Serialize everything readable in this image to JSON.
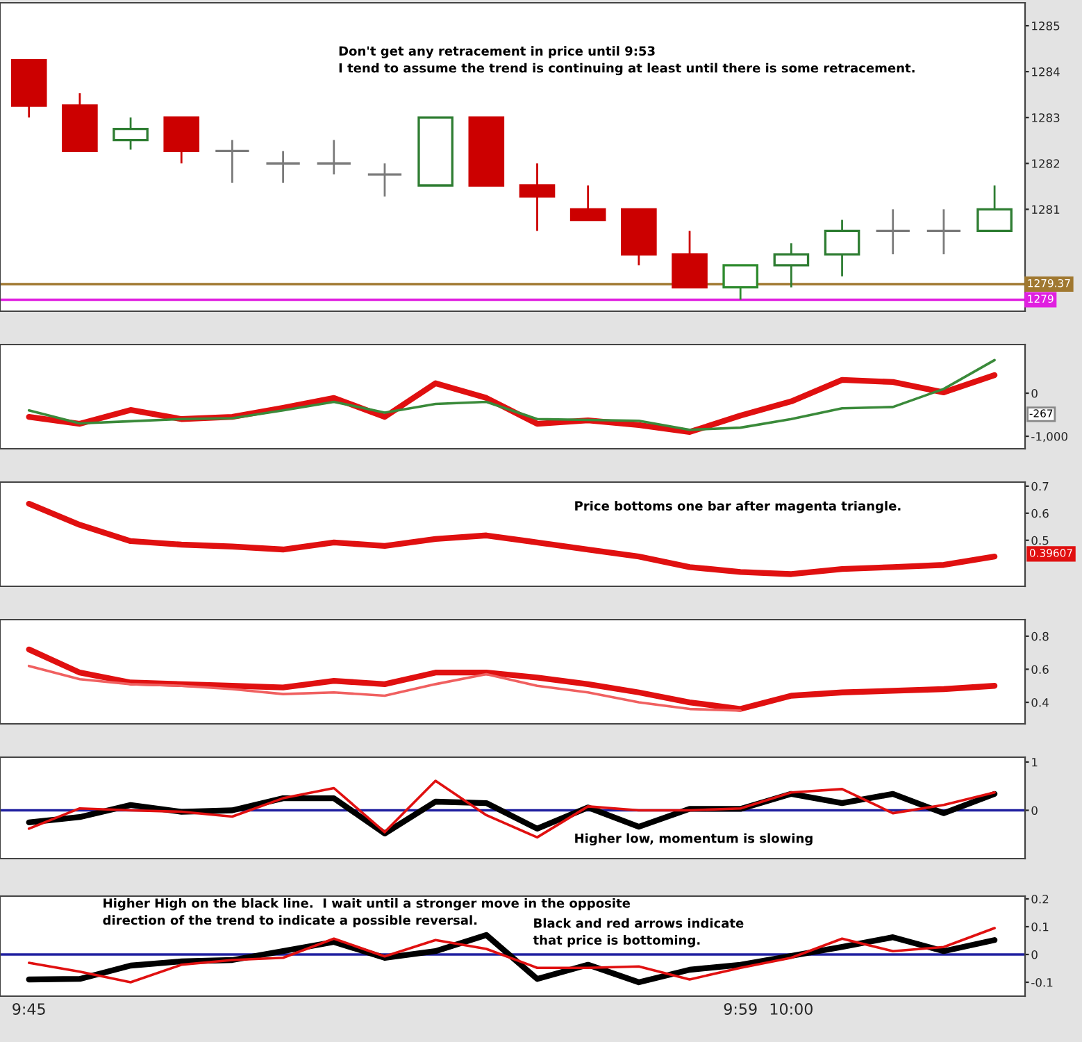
{
  "chart_data": [
    {
      "type": "candlestick",
      "categories": [
        null,
        null,
        null,
        null,
        null,
        null,
        null,
        null,
        null,
        null,
        null,
        null,
        null,
        null,
        null,
        null,
        null,
        null,
        null,
        null
      ],
      "ohlc": [
        [
          1284.25,
          1284.25,
          1283.0,
          1283.26
        ],
        [
          1283.26,
          1283.53,
          1282.27,
          1282.27
        ],
        [
          1282.51,
          1283.0,
          1282.3,
          1282.75
        ],
        [
          1283.0,
          1283.0,
          1282.0,
          1282.27
        ],
        [
          1282.27,
          1282.51,
          1281.58,
          1282.27
        ],
        [
          1282.0,
          1282.27,
          1281.58,
          1282.0
        ],
        [
          1282.0,
          1282.51,
          1281.76,
          1282.0
        ],
        [
          1281.76,
          1282.0,
          1281.28,
          1281.76
        ],
        [
          1281.52,
          1283.0,
          1281.52,
          1283.0
        ],
        [
          1283.0,
          1283.0,
          1281.52,
          1281.52
        ],
        [
          1281.52,
          1282.0,
          1280.53,
          1281.28
        ],
        [
          1281.0,
          1281.52,
          1280.77,
          1280.77
        ],
        [
          1281.0,
          1281.0,
          1279.78,
          1280.02
        ],
        [
          1280.02,
          1280.53,
          1279.3,
          1279.3
        ],
        [
          1279.3,
          1279.78,
          1279.03,
          1279.78
        ],
        [
          1279.78,
          1280.26,
          1279.3,
          1280.02
        ],
        [
          1280.02,
          1280.77,
          1279.54,
          1280.53
        ],
        [
          1280.53,
          1281.0,
          1280.02,
          1280.53
        ],
        [
          1280.53,
          1281.0,
          1280.02,
          1280.53
        ],
        [
          1280.53,
          1281.52,
          1280.53,
          1281.0
        ]
      ],
      "colors": [
        "#cc0000",
        "#cc0000",
        "#2e7d32",
        "#cc0000",
        "#7a7a7a",
        "#7a7a7a",
        "#7a7a7a",
        "#7a7a7a",
        "#2e7d32",
        "#cc0000",
        "#cc0000",
        "#cc0000",
        "#cc0000",
        "#cc0000",
        "#2e8b2e",
        "#2e7d32",
        "#2e7d32",
        "#7a7a7a",
        "#7a7a7a",
        "#2e7d32"
      ],
      "ylim": [
        1278.78,
        1285.5
      ],
      "yticks": [
        1281,
        1282,
        1283,
        1284,
        1285
      ],
      "tick_labels": "y",
      "ref_lines": [
        {
          "axis": "y",
          "value": 1279.37,
          "label": "1279.37",
          "color": "#a07830"
        },
        {
          "axis": "y",
          "value": 1279.03,
          "label": "1279",
          "color": "#e020e0"
        }
      ],
      "annotations": [
        "Don't get any retracement in price until 9:53\nI tend to assume the trend is continuing at least until there is some retracement."
      ]
    },
    {
      "type": "line",
      "categories": [
        null,
        null,
        null,
        null,
        null,
        null,
        null,
        null,
        null,
        null,
        null,
        null,
        null,
        null,
        null,
        null,
        null,
        null,
        null,
        null
      ],
      "series": [
        {
          "color": "#e01010",
          "values": [
            -550,
            -710,
            -390,
            -600,
            -550,
            -340,
            -110,
            -550,
            230,
            -110,
            -710,
            -630,
            -740,
            -900,
            -520,
            -190,
            310,
            260,
            20,
            420
          ]
        },
        {
          "color": "#3a8a3a",
          "values": [
            -400,
            -700,
            -650,
            -600,
            -580,
            -400,
            -200,
            -450,
            -250,
            -200,
            -600,
            -620,
            -640,
            -850,
            -800,
            -600,
            -350,
            -320,
            100,
            770
          ]
        }
      ],
      "ylim": [
        -1290,
        1130
      ],
      "yticks": [
        0,
        {
          "value": -1000,
          "label": "-1,000"
        }
      ],
      "tick_labels": "y",
      "annotations": [
        "-267"
      ]
    },
    {
      "type": "line",
      "categories": [
        null,
        null,
        null,
        null,
        null,
        null,
        null,
        null,
        null,
        null,
        null,
        null,
        null,
        null,
        null,
        null,
        null,
        null,
        null,
        null
      ],
      "series": [
        {
          "color": "#e01010",
          "values": [
            0.635,
            0.557,
            0.497,
            0.484,
            0.477,
            0.466,
            0.492,
            0.479,
            0.505,
            0.518,
            0.492,
            0.466,
            0.44,
            0.401,
            0.383,
            0.375,
            0.394,
            0.401,
            0.409,
            0.44
          ]
        }
      ],
      "ylim": [
        0.33,
        0.715
      ],
      "yticks": [
        0.5,
        0.6,
        0.7
      ],
      "tick_labels": "y",
      "annotations": [
        "Price bottoms one bar after magenta triangle.",
        "0.39607"
      ]
    },
    {
      "type": "line",
      "categories": [
        null,
        null,
        null,
        null,
        null,
        null,
        null,
        null,
        null,
        null,
        null,
        null,
        null,
        null,
        null,
        null,
        null,
        null,
        null,
        null
      ],
      "series": [
        {
          "color": "#e01010",
          "values": [
            0.72,
            0.58,
            0.52,
            0.51,
            0.5,
            0.49,
            0.53,
            0.51,
            0.58,
            0.58,
            0.55,
            0.51,
            0.46,
            0.4,
            0.36,
            0.44,
            0.46,
            0.47,
            0.48,
            0.5
          ]
        },
        {
          "color": "#f06060",
          "values": [
            0.62,
            0.54,
            0.51,
            0.5,
            0.48,
            0.45,
            0.46,
            0.44,
            0.51,
            0.57,
            0.5,
            0.46,
            0.4,
            0.36,
            0.35,
            null,
            null,
            null,
            null,
            null
          ]
        }
      ],
      "ylim": [
        0.27,
        0.9
      ],
      "yticks": [
        0.4,
        0.6,
        0.8
      ],
      "tick_labels": "y"
    },
    {
      "type": "line",
      "categories": [
        null,
        null,
        null,
        null,
        null,
        null,
        null,
        null,
        null,
        null,
        null,
        null,
        null,
        null,
        null,
        null,
        null,
        null,
        null,
        null
      ],
      "series": [
        {
          "color": "#000000",
          "values": [
            -0.25,
            -0.14,
            0.11,
            -0.03,
            0.0,
            0.25,
            0.25,
            -0.48,
            0.18,
            0.15,
            -0.38,
            0.06,
            -0.34,
            0.03,
            0.03,
            0.34,
            0.15,
            0.34,
            -0.06,
            0.34
          ]
        },
        {
          "color": "#e01010",
          "values": [
            -0.38,
            0.04,
            0.0,
            -0.03,
            -0.13,
            0.25,
            0.46,
            -0.45,
            0.61,
            -0.1,
            -0.56,
            0.08,
            0.0,
            0.0,
            0.04,
            0.37,
            0.44,
            -0.06,
            0.11,
            0.37
          ]
        }
      ],
      "ylim": [
        -1,
        1.1
      ],
      "yticks": [
        0,
        1
      ],
      "tick_labels": "y",
      "ref_lines": [
        {
          "axis": "y",
          "value": 0,
          "color": "#2020a0"
        }
      ],
      "annotations": [
        "Higher low, momentum is slowing"
      ]
    },
    {
      "type": "line",
      "categories": [
        "9:45",
        null,
        null,
        null,
        null,
        null,
        null,
        null,
        null,
        null,
        null,
        null,
        null,
        null,
        "9:59",
        "10:00",
        null,
        null,
        null,
        null
      ],
      "series": [
        {
          "color": "#000000",
          "values": [
            -0.09,
            -0.088,
            -0.04,
            -0.025,
            -0.02,
            0.012,
            0.045,
            -0.012,
            0.012,
            0.07,
            -0.088,
            -0.037,
            -0.1,
            -0.055,
            -0.037,
            -0.005,
            0.027,
            0.062,
            0.012,
            0.052
          ]
        },
        {
          "color": "#e01010",
          "values": [
            -0.03,
            -0.062,
            -0.1,
            -0.037,
            -0.02,
            -0.012,
            0.057,
            -0.007,
            0.052,
            0.02,
            -0.048,
            -0.048,
            -0.043,
            -0.09,
            -0.048,
            -0.012,
            0.057,
            0.012,
            0.027,
            0.095
          ]
        }
      ],
      "ylim": [
        -0.15,
        0.21
      ],
      "yticks": [
        {
          "value": -0.1,
          "label": "-0.1"
        },
        0,
        0.1,
        0.2
      ],
      "ref_lines": [
        {
          "axis": "y",
          "value": 0,
          "color": "#2020a0"
        }
      ],
      "annotations": [
        "Higher High on the black line.  I wait until a stronger move in the opposite\ndirection of the trend to indicate a possible reversal.",
        "Black and red arrows indicate\nthat price is bottoming."
      ]
    }
  ]
}
